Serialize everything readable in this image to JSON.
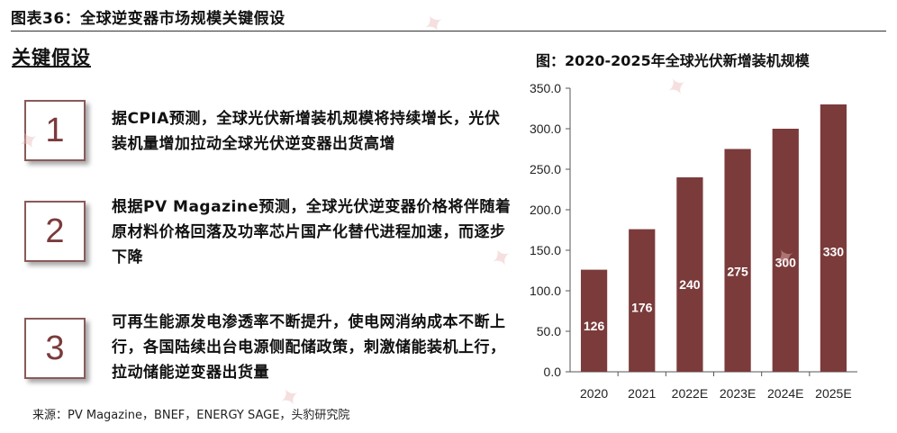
{
  "header": {
    "title": "图表36：全球逆变器市场规模关键假设"
  },
  "section": {
    "title": "关键假设"
  },
  "assumptions": [
    {
      "number": "1",
      "text": "据CPIA预测，全球光伏新增装机规模将持续增长，光伏装机量增加拉动全球光伏逆变器出货高增"
    },
    {
      "number": "2",
      "text": "根据PV Magazine预测，全球光伏逆变器价格将伴随着原材料价格回落及功率芯片国产化替代进程加速，而逐步下降"
    },
    {
      "number": "3",
      "text": "可再生能源发电渗透率不断提升，使电网消纳成本不断上行，各国陆续出台电源侧配储政策，刺激储能装机上行，拉动储能逆变器出货量"
    }
  ],
  "chart_title": "图：2020-2025年全球光伏新增装机规模",
  "chart_data": {
    "type": "bar",
    "title": "图：2020-2025年全球光伏新增装机规模",
    "categories": [
      "2020",
      "2021",
      "2022E",
      "2023E",
      "2024E",
      "2025E"
    ],
    "values": [
      126,
      176,
      240,
      275,
      300,
      330
    ],
    "data_labels": [
      "126",
      "176",
      "240",
      "275",
      "300",
      "330"
    ],
    "ylim": [
      0,
      350
    ],
    "yticks": [
      "0.0",
      "50.0",
      "100.0",
      "150.0",
      "200.0",
      "250.0",
      "300.0",
      "350.0"
    ],
    "xlabel": "",
    "ylabel": "",
    "bar_color": "#7b3b3b",
    "grid": false
  },
  "source": "来源：PV Magazine，BNEF，ENERGY SAGE，头豹研究院",
  "colors": {
    "accent": "#7b3b3b",
    "box_border": "#8a5a5a"
  }
}
